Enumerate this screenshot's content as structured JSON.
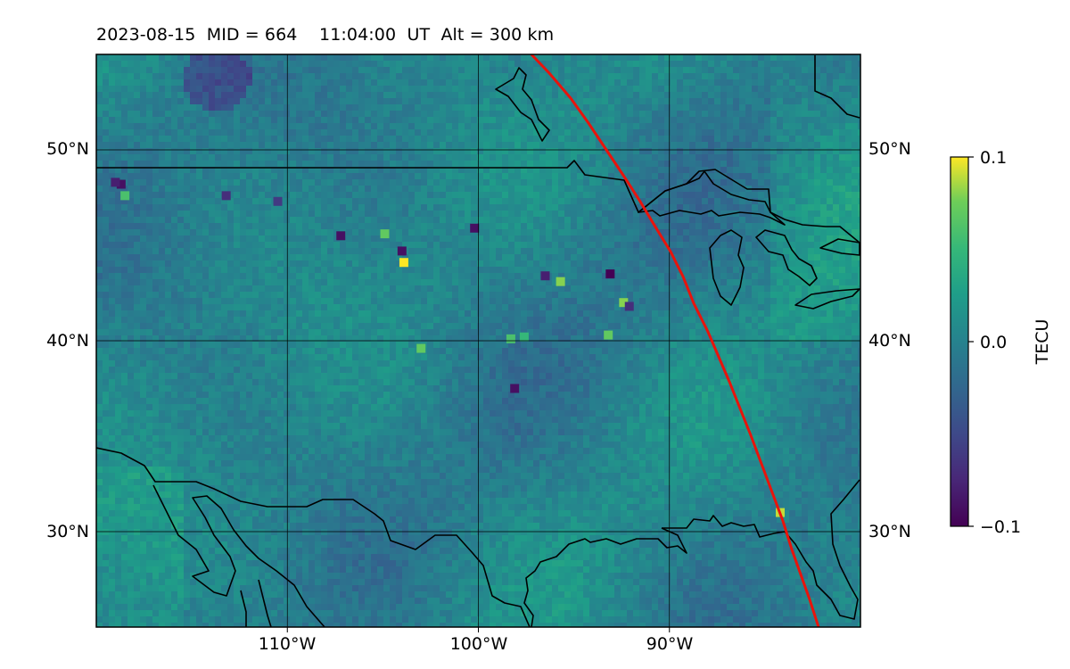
{
  "figure": {
    "title": "2023-08-15  MID = 664    11:04:00  UT  Alt = 300 km"
  },
  "chart_data": {
    "type": "heatmap",
    "title": "2023-08-15  MID = 664    11:04:00  UT  Alt = 300 km",
    "date": "2023-08-15",
    "mid": 664,
    "time_ut": "11:04:00",
    "altitude_km": 300,
    "quantity": "TECU",
    "lon_range": [
      -120,
      -80
    ],
    "lat_range": [
      25,
      55
    ],
    "grid": true,
    "lat_ticks": [
      "30°N",
      "40°N",
      "50°N"
    ],
    "lon_ticks": [
      "110°W",
      "100°W",
      "90°W"
    ],
    "colorbar": {
      "label": "TECU",
      "colormap": "viridis",
      "min": -0.1,
      "max": 0.1,
      "tick_labels": [
        "−0.1",
        "0.0",
        "0.1"
      ],
      "placement": "right"
    },
    "terminator_color": "#e8140c",
    "coastline_color": "#000000",
    "highlights": [
      {
        "lon": -118.7,
        "lat": 48.2,
        "value": -0.09
      },
      {
        "lon": -118.5,
        "lat": 47.6,
        "value": 0.06
      },
      {
        "lon": -113.2,
        "lat": 47.6,
        "value": -0.07
      },
      {
        "lon": -110.5,
        "lat": 47.3,
        "value": -0.06
      },
      {
        "lon": -107.2,
        "lat": 45.5,
        "value": -0.09
      },
      {
        "lon": -104.9,
        "lat": 45.6,
        "value": 0.07
      },
      {
        "lon": -104.0,
        "lat": 44.7,
        "value": -0.09
      },
      {
        "lon": -103.9,
        "lat": 44.1,
        "value": 0.1
      },
      {
        "lon": -100.2,
        "lat": 45.9,
        "value": -0.09
      },
      {
        "lon": -96.5,
        "lat": 43.4,
        "value": -0.08
      },
      {
        "lon": -95.7,
        "lat": 43.1,
        "value": 0.08
      },
      {
        "lon": -93.1,
        "lat": 43.5,
        "value": -0.1
      },
      {
        "lon": -92.4,
        "lat": 42.0,
        "value": 0.08
      },
      {
        "lon": -92.1,
        "lat": 41.8,
        "value": -0.07
      },
      {
        "lon": -103.0,
        "lat": 39.6,
        "value": 0.07
      },
      {
        "lon": -98.1,
        "lat": 37.5,
        "value": -0.09
      },
      {
        "lon": -97.6,
        "lat": 40.2,
        "value": 0.05
      },
      {
        "lon": -93.2,
        "lat": 40.3,
        "value": 0.07
      },
      {
        "lon": -84.2,
        "lat": 31.0,
        "value": 0.09
      },
      {
        "lon": -98.3,
        "lat": 40.1,
        "value": 0.06
      },
      {
        "lon": -119.0,
        "lat": 48.3,
        "value": -0.08
      }
    ]
  }
}
